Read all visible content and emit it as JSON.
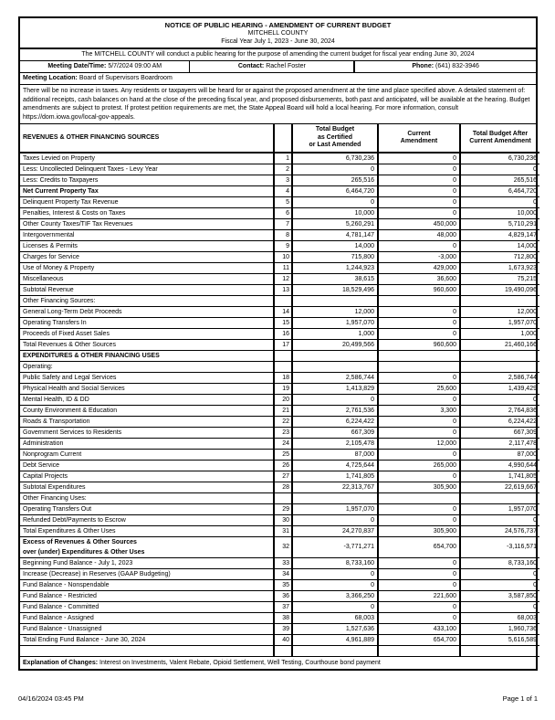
{
  "page": {
    "title_line1": "NOTICE OF PUBLIC HEARING - AMENDMENT OF CURRENT BUDGET",
    "title_line2": "MITCHELL COUNTY",
    "title_line3": "Fiscal Year July 1, 2023 - June 30, 2024",
    "notice": "The MITCHELL COUNTY will conduct a public hearing for the purpose of amending the current budget for fiscal year ending June 30, 2024",
    "meeting": {
      "datetime_label": "Meeting Date/Time:",
      "datetime_value": "5/7/2024 09:00 AM",
      "contact_label": "Contact:",
      "contact_value": "Rachel Foster",
      "phone_label": "Phone:",
      "phone_value": "(641) 832-3946",
      "location_label": "Meeting Location:",
      "location_value": "Board of Supervisors Boardroom"
    },
    "paragraph": {
      "text_before": "There will be no increase in taxes. Any residents or taxpayers will be heard for or against the proposed amendment at the time and place specified above. A detailed statement of: additional receipts, cash balances on hand at the close of the preceding fiscal year, and proposed disbursements, both past and anticipated, will be available at the hearing. Budget amendments are subject to protest. If protest petition requirements are met, the State Appeal Board will hold a local hearing. For more information, consult ",
      "url": "https://dom.iowa.gov/local-gov-appeals",
      "text_after": "."
    },
    "table": {
      "header": {
        "label": "REVENUES & OTHER FINANCING SOURCES",
        "col1": "Total Budget\nas Certified\nor Last Amended",
        "col2": "Current\nAmendment",
        "col3": "Total Budget After\nCurrent Amendment"
      },
      "rows": [
        {
          "label": "Taxes Levied on Property",
          "num": "1",
          "v1": "6,730,236",
          "v2": "0",
          "v3": "6,730,236"
        },
        {
          "label": "Less: Uncollected Delinquent Taxes - Levy Year",
          "num": "2",
          "v1": "0",
          "v2": "0",
          "v3": "0"
        },
        {
          "label": "Less: Credits to Taxpayers",
          "num": "3",
          "v1": "265,516",
          "v2": "0",
          "v3": "265,516"
        },
        {
          "label": "Net Current Property Tax",
          "num": "4",
          "v1": "6,464,720",
          "v2": "0",
          "v3": "6,464,720",
          "bold": true
        },
        {
          "label": "Delinquent Property Tax Revenue",
          "num": "5",
          "v1": "0",
          "v2": "0",
          "v3": "0"
        },
        {
          "label": "Penalties, Interest & Costs on Taxes",
          "num": "6",
          "v1": "10,000",
          "v2": "0",
          "v3": "10,000"
        },
        {
          "label": "Other County Taxes/TIF Tax Revenues",
          "num": "7",
          "v1": "5,260,291",
          "v2": "450,000",
          "v3": "5,710,291"
        },
        {
          "label": "Intergovernmental",
          "num": "8",
          "v1": "4,781,147",
          "v2": "48,000",
          "v3": "4,829,147"
        },
        {
          "label": "Licenses & Permits",
          "num": "9",
          "v1": "14,000",
          "v2": "0",
          "v3": "14,000"
        },
        {
          "label": "Charges for Service",
          "num": "10",
          "v1": "715,800",
          "v2": "-3,000",
          "v3": "712,800"
        },
        {
          "label": "Use of Money & Property",
          "num": "11",
          "v1": "1,244,923",
          "v2": "429,000",
          "v3": "1,673,923"
        },
        {
          "label": "Miscellaneous",
          "num": "12",
          "v1": "38,615",
          "v2": "36,600",
          "v3": "75,215"
        },
        {
          "label": "Subtotal Revenue",
          "num": "13",
          "v1": "18,529,496",
          "v2": "960,600",
          "v3": "19,490,096"
        },
        {
          "label": "Other Financing Sources:",
          "num": "",
          "v1": "",
          "v2": "",
          "v3": ""
        },
        {
          "label": "General Long-Term Debt Proceeds",
          "num": "14",
          "v1": "12,000",
          "v2": "0",
          "v3": "12,000"
        },
        {
          "label": "Operating Transfers In",
          "num": "15",
          "v1": "1,957,070",
          "v2": "0",
          "v3": "1,957,070"
        },
        {
          "label": "Proceeds of Fixed Asset Sales",
          "num": "16",
          "v1": "1,000",
          "v2": "0",
          "v3": "1,000"
        },
        {
          "label": "Total Revenues & Other Sources",
          "num": "17",
          "v1": "20,499,566",
          "v2": "960,600",
          "v3": "21,460,166"
        },
        {
          "label": "EXPENDITURES & OTHER FINANCING USES",
          "num": "",
          "v1": "",
          "v2": "",
          "v3": "",
          "bold": true
        },
        {
          "label": "Operating:",
          "num": "",
          "v1": "",
          "v2": "",
          "v3": ""
        },
        {
          "label": "Public Safety and Legal Services",
          "num": "18",
          "v1": "2,586,744",
          "v2": "0",
          "v3": "2,586,744"
        },
        {
          "label": "Physical Health and Social Services",
          "num": "19",
          "v1": "1,413,829",
          "v2": "25,600",
          "v3": "1,439,429"
        },
        {
          "label": "Mental Health, ID & DD",
          "num": "20",
          "v1": "0",
          "v2": "0",
          "v3": "0"
        },
        {
          "label": "County Environment & Education",
          "num": "21",
          "v1": "2,761,536",
          "v2": "3,300",
          "v3": "2,764,836"
        },
        {
          "label": "Roads & Transportation",
          "num": "22",
          "v1": "6,224,422",
          "v2": "0",
          "v3": "6,224,422"
        },
        {
          "label": "Government Services to Residents",
          "num": "23",
          "v1": "667,309",
          "v2": "0",
          "v3": "667,309"
        },
        {
          "label": "Administration",
          "num": "24",
          "v1": "2,105,478",
          "v2": "12,000",
          "v3": "2,117,478"
        },
        {
          "label": "Nonprogram Current",
          "num": "25",
          "v1": "87,000",
          "v2": "0",
          "v3": "87,000"
        },
        {
          "label": "Debt Service",
          "num": "26",
          "v1": "4,725,644",
          "v2": "265,000",
          "v3": "4,990,644"
        },
        {
          "label": "Capital Projects",
          "num": "27",
          "v1": "1,741,805",
          "v2": "0",
          "v3": "1,741,805"
        },
        {
          "label": "Subtotal Expenditures",
          "num": "28",
          "v1": "22,313,767",
          "v2": "305,900",
          "v3": "22,619,667"
        },
        {
          "label": "Other Financing Uses:",
          "num": "",
          "v1": "",
          "v2": "",
          "v3": ""
        },
        {
          "label": "Operating Transfers Out",
          "num": "29",
          "v1": "1,957,070",
          "v2": "0",
          "v3": "1,957,070"
        },
        {
          "label": "Refunded Debt/Payments to Escrow",
          "num": "30",
          "v1": "0",
          "v2": "0",
          "v3": "0"
        },
        {
          "label": "Total Expenditures & Other Uses",
          "num": "31",
          "v1": "24,270,837",
          "v2": "305,900",
          "v3": "24,576,737"
        },
        {
          "label": "Excess of Revenues & Other Sources\nover (under) Expenditures & Other Uses",
          "num": "32",
          "v1": "-3,771,271",
          "v2": "654,700",
          "v3": "-3,116,571",
          "bold": true
        },
        {
          "label": "Beginning Fund Balance - July 1, 2023",
          "num": "33",
          "v1": "8,733,160",
          "v2": "0",
          "v3": "8,733,160"
        },
        {
          "label": "Increase (Decrease) in Reserves (GAAP Budgeting)",
          "num": "34",
          "v1": "0",
          "v2": "0",
          "v3": "0"
        },
        {
          "label": "Fund Balance - Nonspendable",
          "num": "35",
          "v1": "0",
          "v2": "0",
          "v3": "0"
        },
        {
          "label": "Fund Balance - Restricted",
          "num": "36",
          "v1": "3,366,250",
          "v2": "221,600",
          "v3": "3,587,850"
        },
        {
          "label": "Fund Balance - Committed",
          "num": "37",
          "v1": "0",
          "v2": "0",
          "v3": "0"
        },
        {
          "label": "Fund Balance - Assigned",
          "num": "38",
          "v1": "68,003",
          "v2": "0",
          "v3": "68,003"
        },
        {
          "label": "Fund Balance - Unassigned",
          "num": "39",
          "v1": "1,527,636",
          "v2": "433,100",
          "v3": "1,960,736"
        },
        {
          "label": "Total Ending Fund Balance - June 30, 2024",
          "num": "40",
          "v1": "4,961,889",
          "v2": "654,700",
          "v3": "5,616,589"
        },
        {
          "label": "",
          "num": "",
          "v1": "",
          "v2": "",
          "v3": ""
        }
      ]
    },
    "explanation": {
      "label": "Explanation of Changes:",
      "text": " Interest on Investments, Valent Rebate, Opioid Settlement, Well Testing, Courthouse bond payment"
    },
    "footer": {
      "timestamp": "04/16/2024 03:45 PM",
      "page": "Page 1 of 1"
    }
  }
}
